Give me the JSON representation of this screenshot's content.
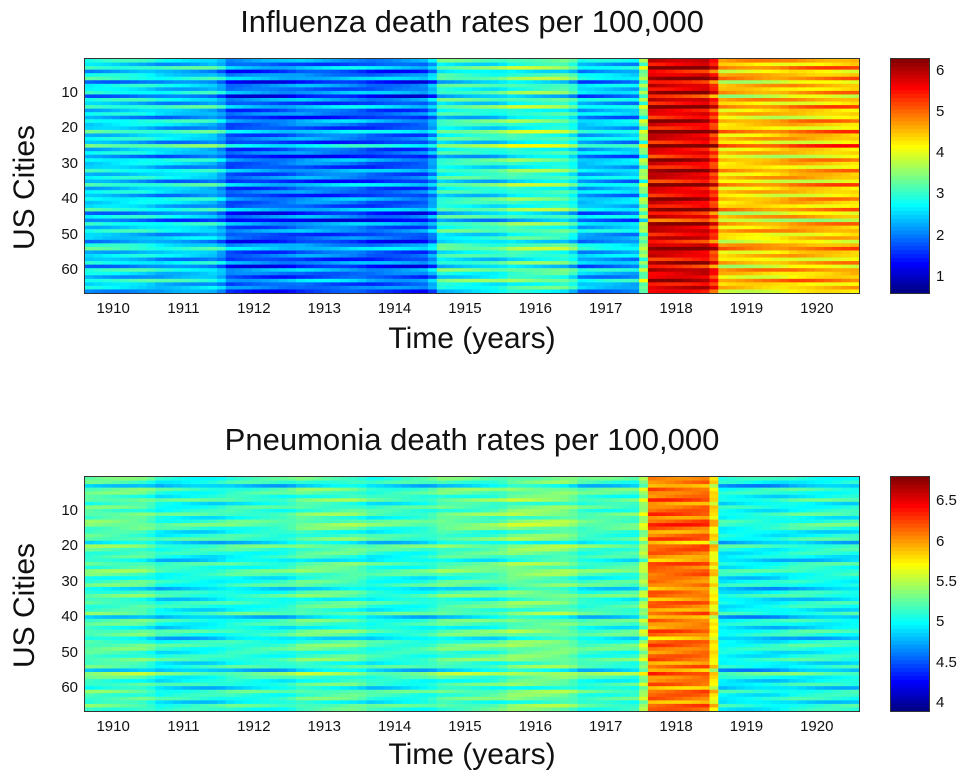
{
  "chart_data": [
    {
      "type": "heatmap",
      "title": "Influenza death rates per 100,000",
      "xlabel": "Time (years)",
      "ylabel": "US Cities",
      "x_ticks": [
        "1910",
        "1911",
        "1912",
        "1913",
        "1914",
        "1915",
        "1916",
        "1917",
        "1918",
        "1919",
        "1920"
      ],
      "xlim": [
        1909.6,
        1920.6
      ],
      "y_ticks": [
        "10",
        "20",
        "30",
        "40",
        "50",
        "60"
      ],
      "ylim": [
        0.5,
        66.5
      ],
      "n_cities": 66,
      "colorbar_ticks": [
        "1",
        "2",
        "3",
        "4",
        "5",
        "6"
      ],
      "clim": [
        0.6,
        6.3
      ],
      "colormap": "jet",
      "yearly_mean": {
        "years": [
          1910,
          1911,
          1912,
          1913,
          1914,
          1915,
          1916,
          1917,
          1918,
          1919,
          1920
        ],
        "values": [
          2.6,
          2.5,
          1.9,
          2.0,
          1.9,
          2.9,
          3.1,
          2.4,
          5.8,
          4.4,
          4.5
        ]
      },
      "city_offsets": [
        0.3,
        -0.2,
        0.6,
        -0.4,
        0.1,
        0.5,
        -0.6,
        0.2,
        -0.1,
        0.4,
        -0.7,
        0.3,
        -0.3,
        0.6,
        -0.2,
        0.1,
        -0.5,
        0.4,
        0.0,
        -0.3,
        0.7,
        -0.1,
        0.2,
        -0.4,
        0.9,
        -0.2,
        0.1,
        -0.6,
        0.3,
        0.0,
        -0.3,
        0.4,
        -0.1,
        0.2,
        -0.5,
        0.6,
        -0.2,
        0.1,
        -0.4,
        0.3,
        0.0,
        -0.2,
        0.5,
        -0.6,
        0.2,
        -0.8,
        0.4,
        -0.1,
        0.3,
        -0.3,
        0.0,
        -0.5,
        0.2,
        0.6,
        -0.2,
        0.1,
        -0.4,
        0.3,
        -0.6,
        0.4,
        0.0,
        -0.3,
        0.5,
        -0.2,
        0.1,
        -0.4
      ]
    },
    {
      "type": "heatmap",
      "title": "Pneumonia death rates per 100,000",
      "xlabel": "Time (years)",
      "ylabel": "US Cities",
      "x_ticks": [
        "1910",
        "1911",
        "1912",
        "1913",
        "1914",
        "1915",
        "1916",
        "1917",
        "1918",
        "1919",
        "1920"
      ],
      "xlim": [
        1909.6,
        1920.6
      ],
      "y_ticks": [
        "10",
        "20",
        "30",
        "40",
        "50",
        "60"
      ],
      "ylim": [
        0.5,
        66.5
      ],
      "n_cities": 66,
      "colorbar_ticks": [
        "4",
        "4.5",
        "5",
        "5.5",
        "6",
        "6.5"
      ],
      "clim": [
        3.9,
        6.8
      ],
      "colormap": "jet",
      "yearly_mean": {
        "years": [
          1910,
          1911,
          1912,
          1913,
          1914,
          1915,
          1916,
          1917,
          1918,
          1919,
          1920
        ],
        "values": [
          5.2,
          5.05,
          5.1,
          5.2,
          5.1,
          5.2,
          5.3,
          5.15,
          6.1,
          5.0,
          5.05
        ]
      },
      "city_offsets": [
        0.1,
        0.0,
        -0.6,
        0.2,
        0.1,
        -0.1,
        0.3,
        -0.2,
        0.1,
        0.0,
        0.3,
        -0.1,
        0.2,
        0.4,
        0.1,
        -0.2,
        0.0,
        0.2,
        -0.5,
        0.3,
        0.1,
        0.0,
        -0.1,
        -0.4,
        0.2,
        0.0,
        0.3,
        0.1,
        -0.2,
        0.0,
        0.1,
        -0.5,
        0.0,
        0.2,
        -0.3,
        0.1,
        0.0,
        -0.2,
        0.2,
        -0.6,
        0.1,
        0.0,
        -0.3,
        0.2,
        0.1,
        -0.5,
        0.0,
        0.2,
        0.1,
        -0.1,
        0.0,
        0.2,
        -0.2,
        0.1,
        -0.6,
        0.5,
        0.0,
        -0.2,
        0.1,
        -0.4,
        0.2,
        0.0,
        0.1,
        -0.3,
        0.2,
        0.0
      ]
    }
  ]
}
